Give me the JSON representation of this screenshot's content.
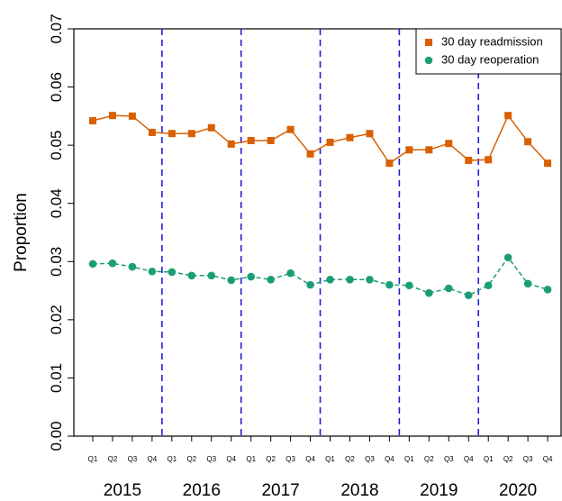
{
  "chart_data": {
    "type": "line",
    "y_label": "Proportion",
    "categories": [
      "Q1",
      "Q2",
      "Q3",
      "Q4",
      "Q1",
      "Q2",
      "Q3",
      "Q4",
      "Q1",
      "Q2",
      "Q3",
      "Q4",
      "Q1",
      "Q2",
      "Q3",
      "Q4",
      "Q1",
      "Q2",
      "Q3",
      "Q4",
      "Q1",
      "Q2",
      "Q3",
      "Q4"
    ],
    "years": [
      "2015",
      "2016",
      "2017",
      "2018",
      "2019",
      "2020"
    ],
    "series": [
      {
        "name": "30 day readmission",
        "color": "#d95f02",
        "marker": "square",
        "values": [
          0.0542,
          0.0551,
          0.055,
          0.0522,
          0.052,
          0.052,
          0.053,
          0.0502,
          0.0508,
          0.0508,
          0.0527,
          0.0485,
          0.0505,
          0.0513,
          0.052,
          0.0469,
          0.0492,
          0.0492,
          0.0503,
          0.0474,
          0.0475,
          0.0551,
          0.0506,
          0.0469
        ]
      },
      {
        "name": "30 day reoperation",
        "color": "#1b9e77",
        "marker": "circle",
        "values": [
          0.0296,
          0.0297,
          0.0291,
          0.0283,
          0.0282,
          0.0276,
          0.0276,
          0.0268,
          0.0274,
          0.0269,
          0.028,
          0.026,
          0.0269,
          0.0269,
          0.0269,
          0.026,
          0.0259,
          0.0246,
          0.0254,
          0.0242,
          0.0259,
          0.0307,
          0.0262,
          0.0252
        ]
      }
    ],
    "ylim": [
      0,
      0.07
    ],
    "yticks": [
      {
        "value": 0,
        "label": "0.00"
      },
      {
        "value": 0.01,
        "label": "0.01"
      },
      {
        "value": 0.02,
        "label": "0.02"
      },
      {
        "value": 0.03,
        "label": "0.03"
      },
      {
        "value": 0.04,
        "label": "0.04"
      },
      {
        "value": 0.05,
        "label": "0.05"
      },
      {
        "value": 0.06,
        "label": "0.06"
      },
      {
        "value": 0.07,
        "label": "0.07"
      }
    ],
    "legend": "top-right"
  }
}
